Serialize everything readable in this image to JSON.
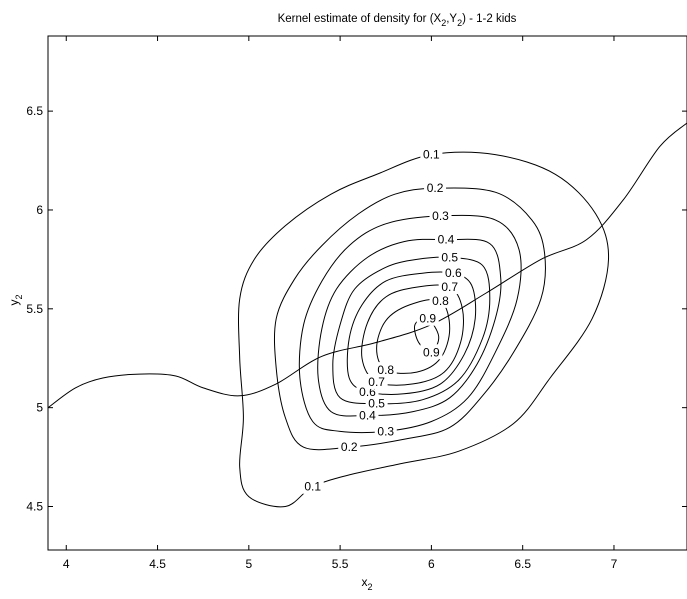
{
  "chart_data": {
    "type": "contour",
    "title": "Kernel estimate of density for (X",
    "title_sub1": "2",
    "title_mid": ",Y",
    "title_sub2": "2",
    "title_end": ") - 1-2 kids",
    "xlabel": "x",
    "xlabel_sub": "2",
    "ylabel": "y",
    "ylabel_sub": "2",
    "xlim": [
      3.9,
      7.4
    ],
    "ylim": [
      4.28,
      6.88
    ],
    "xticks": [
      4,
      4.5,
      5,
      5.5,
      6,
      6.5,
      7
    ],
    "xtick_labels": [
      "4",
      "4.5",
      "5",
      "5.5",
      "6",
      "6.5",
      "7"
    ],
    "yticks": [
      4.5,
      5,
      5.5,
      6,
      6.5
    ],
    "ytick_labels": [
      "4.5",
      "5",
      "5.5",
      "6",
      "6.5"
    ],
    "grid": false,
    "contours": [
      {
        "level": 0.1,
        "label": "0.1",
        "points": [
          [
            6.0,
            6.28
          ],
          [
            6.35,
            6.28
          ],
          [
            6.68,
            6.18
          ],
          [
            6.9,
            5.98
          ],
          [
            6.97,
            5.75
          ],
          [
            6.88,
            5.45
          ],
          [
            6.65,
            5.15
          ],
          [
            6.45,
            4.92
          ],
          [
            6.15,
            4.78
          ],
          [
            5.85,
            4.72
          ],
          [
            5.55,
            4.66
          ],
          [
            5.35,
            4.6
          ],
          [
            5.2,
            4.5
          ],
          [
            5.0,
            4.55
          ],
          [
            4.95,
            4.7
          ],
          [
            4.97,
            4.95
          ],
          [
            4.95,
            5.25
          ],
          [
            4.95,
            5.55
          ],
          [
            5.03,
            5.75
          ],
          [
            5.2,
            5.92
          ],
          [
            5.45,
            6.08
          ],
          [
            5.7,
            6.18
          ]
        ]
      },
      {
        "level": 0.2,
        "label": "0.2",
        "points": [
          [
            6.02,
            6.11
          ],
          [
            6.35,
            6.09
          ],
          [
            6.55,
            5.95
          ],
          [
            6.62,
            5.78
          ],
          [
            6.6,
            5.55
          ],
          [
            6.45,
            5.28
          ],
          [
            6.28,
            5.06
          ],
          [
            6.1,
            4.9
          ],
          [
            5.85,
            4.84
          ],
          [
            5.55,
            4.8
          ],
          [
            5.3,
            4.8
          ],
          [
            5.2,
            4.95
          ],
          [
            5.15,
            5.2
          ],
          [
            5.15,
            5.45
          ],
          [
            5.25,
            5.65
          ],
          [
            5.4,
            5.82
          ],
          [
            5.6,
            5.98
          ],
          [
            5.8,
            6.08
          ]
        ]
      },
      {
        "level": 0.3,
        "label": "0.3",
        "points": [
          [
            6.05,
            5.97
          ],
          [
            6.35,
            5.95
          ],
          [
            6.48,
            5.8
          ],
          [
            6.47,
            5.55
          ],
          [
            6.35,
            5.28
          ],
          [
            6.2,
            5.05
          ],
          [
            6.0,
            4.93
          ],
          [
            5.75,
            4.88
          ],
          [
            5.5,
            4.88
          ],
          [
            5.35,
            4.93
          ],
          [
            5.28,
            5.15
          ],
          [
            5.3,
            5.42
          ],
          [
            5.4,
            5.64
          ],
          [
            5.55,
            5.82
          ],
          [
            5.75,
            5.93
          ]
        ]
      },
      {
        "level": 0.4,
        "label": "0.4",
        "points": [
          [
            6.08,
            5.85
          ],
          [
            6.32,
            5.83
          ],
          [
            6.38,
            5.65
          ],
          [
            6.35,
            5.45
          ],
          [
            6.25,
            5.22
          ],
          [
            6.1,
            5.05
          ],
          [
            5.9,
            4.98
          ],
          [
            5.65,
            4.96
          ],
          [
            5.45,
            4.98
          ],
          [
            5.38,
            5.15
          ],
          [
            5.4,
            5.4
          ],
          [
            5.48,
            5.6
          ],
          [
            5.65,
            5.76
          ],
          [
            5.85,
            5.84
          ]
        ]
      },
      {
        "level": 0.5,
        "label": "0.5",
        "points": [
          [
            6.1,
            5.76
          ],
          [
            6.28,
            5.72
          ],
          [
            6.32,
            5.55
          ],
          [
            6.28,
            5.35
          ],
          [
            6.15,
            5.14
          ],
          [
            5.95,
            5.04
          ],
          [
            5.7,
            5.02
          ],
          [
            5.5,
            5.05
          ],
          [
            5.46,
            5.22
          ],
          [
            5.5,
            5.42
          ],
          [
            5.58,
            5.6
          ],
          [
            5.75,
            5.71
          ],
          [
            5.92,
            5.75
          ]
        ]
      },
      {
        "level": 0.6,
        "label": "0.6",
        "points": [
          [
            6.12,
            5.68
          ],
          [
            6.22,
            5.62
          ],
          [
            6.24,
            5.45
          ],
          [
            6.18,
            5.27
          ],
          [
            6.05,
            5.12
          ],
          [
            5.85,
            5.07
          ],
          [
            5.65,
            5.08
          ],
          [
            5.55,
            5.15
          ],
          [
            5.55,
            5.35
          ],
          [
            5.62,
            5.52
          ],
          [
            5.75,
            5.64
          ],
          [
            5.95,
            5.68
          ]
        ]
      },
      {
        "level": 0.7,
        "label": "0.7",
        "points": [
          [
            6.1,
            5.61
          ],
          [
            6.17,
            5.5
          ],
          [
            6.16,
            5.33
          ],
          [
            6.07,
            5.18
          ],
          [
            5.9,
            5.12
          ],
          [
            5.7,
            5.13
          ],
          [
            5.62,
            5.25
          ],
          [
            5.65,
            5.43
          ],
          [
            5.75,
            5.56
          ],
          [
            5.92,
            5.61
          ]
        ]
      },
      {
        "level": 0.8,
        "label": "0.8",
        "points": [
          [
            6.05,
            5.54
          ],
          [
            6.1,
            5.4
          ],
          [
            6.05,
            5.25
          ],
          [
            5.92,
            5.18
          ],
          [
            5.75,
            5.19
          ],
          [
            5.7,
            5.3
          ],
          [
            5.75,
            5.44
          ],
          [
            5.88,
            5.52
          ]
        ]
      },
      {
        "level": 0.9,
        "label": "0.9",
        "points": [
          [
            5.98,
            5.45
          ],
          [
            6.04,
            5.36
          ],
          [
            6.0,
            5.28
          ],
          [
            5.93,
            5.33
          ],
          [
            5.91,
            5.42
          ]
        ]
      }
    ],
    "regression_curve": {
      "x": [
        3.9,
        4.05,
        4.2,
        4.4,
        4.6,
        4.75,
        4.95,
        5.15,
        5.4,
        5.7,
        6.0,
        6.3,
        6.6,
        6.85,
        7.05,
        7.25,
        7.4
      ],
      "y": [
        5.0,
        5.1,
        5.15,
        5.17,
        5.16,
        5.1,
        5.06,
        5.12,
        5.26,
        5.33,
        5.42,
        5.58,
        5.75,
        5.85,
        6.05,
        6.32,
        6.44
      ]
    }
  }
}
